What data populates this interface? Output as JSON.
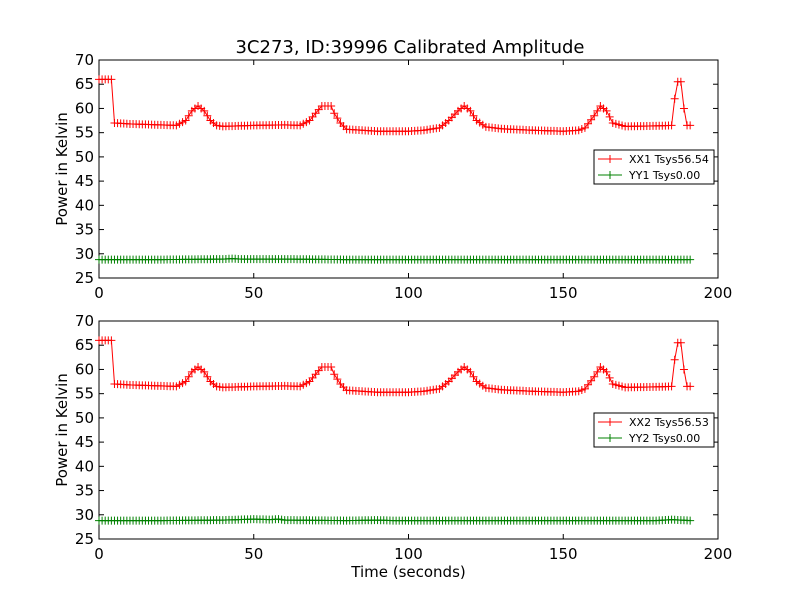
{
  "figure": {
    "title": "3C273, ID:39996 Calibrated Amplitude"
  },
  "chart_data": [
    {
      "type": "line",
      "title": "3C273, ID:39996 Calibrated Amplitude",
      "xlabel": "",
      "ylabel": "Power in Kelvin",
      "xlim": [
        0,
        200
      ],
      "ylim": [
        25,
        70
      ],
      "xticks": [
        "0",
        "50",
        "100",
        "150",
        "200"
      ],
      "yticks": [
        "25",
        "30",
        "35",
        "40",
        "45",
        "50",
        "55",
        "60",
        "65",
        "70"
      ],
      "grid": false,
      "legend_position": "right",
      "series": [
        {
          "name": "XX1 Tsys56.54",
          "color": "#ff0000",
          "marker": "+",
          "x": [
            0,
            2,
            3,
            4,
            5,
            10,
            15,
            20,
            25,
            28,
            30,
            32,
            34,
            36,
            38,
            40,
            50,
            60,
            65,
            68,
            70,
            72,
            74,
            75,
            76,
            78,
            80,
            85,
            90,
            100,
            105,
            110,
            113,
            116,
            118,
            120,
            122,
            125,
            130,
            140,
            150,
            155,
            157,
            160,
            162,
            164,
            166,
            170,
            180,
            185,
            186,
            187,
            188,
            189,
            190,
            191
          ],
          "values": [
            66,
            66,
            66,
            66,
            57,
            56.8,
            56.7,
            56.6,
            56.5,
            57.5,
            59.5,
            60.5,
            59.5,
            57.5,
            56.5,
            56.3,
            56.5,
            56.6,
            56.5,
            57.5,
            59,
            60.5,
            60.5,
            60.5,
            59,
            57,
            55.7,
            55.5,
            55.3,
            55.3,
            55.5,
            56,
            57.5,
            59.5,
            60.5,
            59.5,
            57.5,
            56.2,
            55.8,
            55.5,
            55.3,
            55.5,
            56,
            58.5,
            60.5,
            59.5,
            57,
            56.3,
            56.4,
            56.5,
            62,
            65.5,
            65.5,
            60,
            56.5,
            56.5
          ]
        },
        {
          "name": "YY1 Tsys0.00",
          "color": "#008000",
          "marker": "+",
          "x": [
            0,
            20,
            40,
            43,
            46,
            60,
            80,
            100,
            120,
            140,
            160,
            180,
            191
          ],
          "values": [
            28.8,
            28.8,
            28.9,
            29.0,
            28.9,
            28.9,
            28.8,
            28.8,
            28.8,
            28.8,
            28.8,
            28.8,
            28.8
          ]
        }
      ]
    },
    {
      "type": "line",
      "title": "",
      "xlabel": "Time (seconds)",
      "ylabel": "Power in Kelvin",
      "xlim": [
        0,
        200
      ],
      "ylim": [
        25,
        70
      ],
      "xticks": [
        "0",
        "50",
        "100",
        "150",
        "200"
      ],
      "yticks": [
        "25",
        "30",
        "35",
        "40",
        "45",
        "50",
        "55",
        "60",
        "65",
        "70"
      ],
      "grid": false,
      "legend_position": "right",
      "series": [
        {
          "name": "XX2 Tsys56.53",
          "color": "#ff0000",
          "marker": "+",
          "x": [
            0,
            2,
            3,
            4,
            5,
            10,
            15,
            20,
            25,
            28,
            30,
            32,
            34,
            36,
            38,
            40,
            50,
            60,
            65,
            68,
            70,
            72,
            74,
            75,
            76,
            78,
            80,
            85,
            90,
            100,
            105,
            110,
            113,
            116,
            118,
            120,
            122,
            125,
            130,
            140,
            150,
            155,
            157,
            160,
            162,
            164,
            166,
            170,
            180,
            185,
            186,
            187,
            188,
            189,
            190,
            191
          ],
          "values": [
            66,
            66,
            66,
            66,
            57,
            56.8,
            56.7,
            56.6,
            56.5,
            57.5,
            59.5,
            60.5,
            59.5,
            57.5,
            56.5,
            56.3,
            56.5,
            56.6,
            56.5,
            57.5,
            59,
            60.5,
            60.5,
            60.5,
            59,
            57,
            55.7,
            55.5,
            55.3,
            55.3,
            55.5,
            56,
            57.5,
            59.5,
            60.5,
            59.5,
            57.5,
            56.2,
            55.8,
            55.5,
            55.3,
            55.5,
            56,
            58.5,
            60.5,
            59.5,
            57,
            56.3,
            56.4,
            56.5,
            62,
            65.5,
            65.5,
            60,
            56.5,
            56.5
          ]
        },
        {
          "name": "YY2 Tsys0.00",
          "color": "#008000",
          "marker": "+",
          "x": [
            0,
            20,
            40,
            45,
            50,
            55,
            58,
            60,
            80,
            90,
            95,
            100,
            120,
            140,
            160,
            180,
            185,
            191
          ],
          "values": [
            28.8,
            28.8,
            28.9,
            29.0,
            29.1,
            29.0,
            29.1,
            28.9,
            28.8,
            28.9,
            28.8,
            28.8,
            28.8,
            28.8,
            28.8,
            28.8,
            29.0,
            28.8
          ]
        }
      ]
    }
  ]
}
